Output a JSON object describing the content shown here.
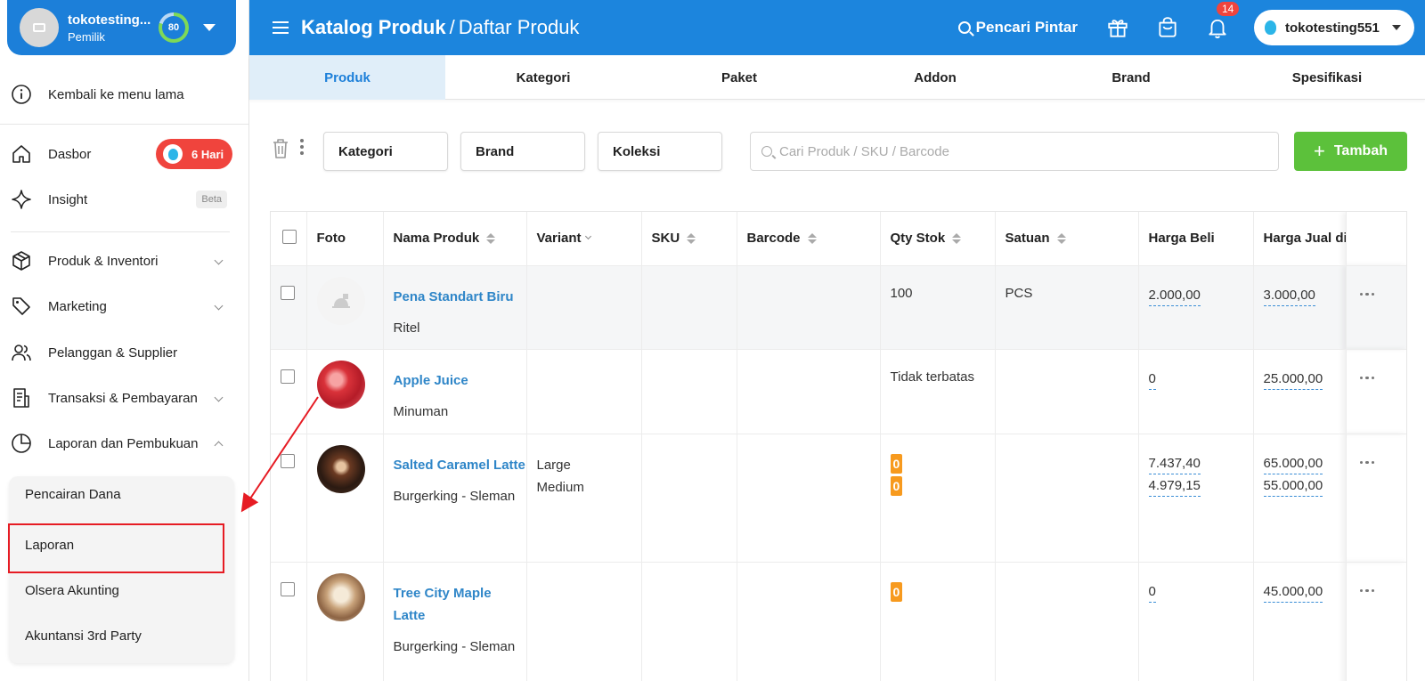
{
  "store": {
    "name": "tokotesting...",
    "role": "Pemilik",
    "score": "80"
  },
  "sidebar": {
    "back_label": "Kembali ke menu lama",
    "items": [
      {
        "label": "Dasbor",
        "badge": "6 Hari"
      },
      {
        "label": "Insight",
        "badge": "Beta"
      },
      {
        "label": "Produk & Inventori"
      },
      {
        "label": "Marketing"
      },
      {
        "label": "Pelanggan & Supplier"
      },
      {
        "label": "Transaksi & Pembayaran"
      },
      {
        "label": "Laporan dan Pembukuan"
      }
    ],
    "submenu": [
      "Pencairan Dana",
      "Laporan",
      "Olsera Akunting",
      "Akuntansi 3rd Party"
    ]
  },
  "header": {
    "breadcrumb_main": "Katalog Produk",
    "breadcrumb_sep": "/",
    "breadcrumb_sub": "Daftar Produk",
    "smart_search": "Pencari Pintar",
    "notif_count": "14",
    "user": "tokotesting551"
  },
  "tabs": [
    "Produk",
    "Kategori",
    "Paket",
    "Addon",
    "Brand",
    "Spesifikasi"
  ],
  "toolbar": {
    "filters": [
      "Kategori",
      "Brand",
      "Koleksi"
    ],
    "search_placeholder": "Cari Produk / SKU / Barcode",
    "add_label": "Tambah"
  },
  "table": {
    "columns": [
      "Foto",
      "Nama Produk",
      "Variant",
      "SKU",
      "Barcode",
      "Qty Stok",
      "Satuan",
      "Harga Beli",
      "Harga Jual di"
    ],
    "rows": [
      {
        "name": "Pena Standart Biru",
        "category": "Ritel",
        "variants": [],
        "qty": "100",
        "unit": "PCS",
        "buy": [
          "2.000,00"
        ],
        "sell": [
          "3.000,00"
        ]
      },
      {
        "name": "Apple Juice",
        "category": "Minuman",
        "variants": [],
        "qty": "Tidak terbatas",
        "unit": "",
        "buy": [
          "0"
        ],
        "sell": [
          "25.000,00"
        ]
      },
      {
        "name": "Salted Caramel Latte",
        "category": "Burgerking - Sleman",
        "variants": [
          "Large",
          "Medium"
        ],
        "qty_badges": [
          "0",
          "0"
        ],
        "unit": "",
        "buy": [
          "7.437,40",
          "4.979,15"
        ],
        "sell": [
          "65.000,00",
          "55.000,00"
        ]
      },
      {
        "name": "Tree City Maple Latte",
        "category": "Burgerking - Sleman",
        "variants": [],
        "qty_badges": [
          "0"
        ],
        "unit": "",
        "buy": [
          "0"
        ],
        "sell": [
          "45.000,00"
        ]
      }
    ]
  },
  "colors": {
    "primary": "#1c85dd",
    "add_button": "#5cc13b",
    "badge_red": "#f0443d",
    "stock_zero": "#f79a1e",
    "highlight": "#e61b23"
  },
  "icons": [
    "menu-icon",
    "gift-icon",
    "shopping-bag-icon",
    "bell-icon",
    "balloon-icon",
    "info-icon",
    "home-icon",
    "sparkle-icon",
    "box-icon",
    "tag-icon",
    "users-icon",
    "receipt-icon",
    "pie-chart-icon",
    "trash-icon"
  ]
}
